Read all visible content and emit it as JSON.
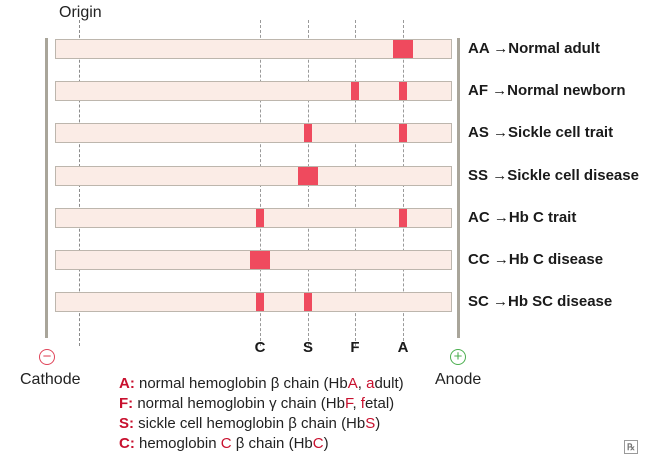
{
  "origin_label": "Origin",
  "lanes": [
    {
      "code": "AA",
      "arrow": "→",
      "label": "Normal adult",
      "bands": [
        "A"
      ],
      "wide": true
    },
    {
      "code": "AF",
      "arrow": "→",
      "label": "Normal newborn",
      "bands": [
        "F",
        "A"
      ],
      "wide": false
    },
    {
      "code": "AS",
      "arrow": "→",
      "label": "Sickle cell trait",
      "bands": [
        "S",
        "A"
      ],
      "wide": false
    },
    {
      "code": "SS",
      "arrow": "→",
      "label": "Sickle cell disease",
      "bands": [
        "S"
      ],
      "wide": true
    },
    {
      "code": "AC",
      "arrow": "→",
      "label": "Hb C trait",
      "bands": [
        "C",
        "A"
      ],
      "wide": false
    },
    {
      "code": "CC",
      "arrow": "→",
      "label": "Hb C disease",
      "bands": [
        "C"
      ],
      "wide": true
    },
    {
      "code": "SC",
      "arrow": "→",
      "label": "Hb SC disease",
      "bands": [
        "C",
        "S"
      ],
      "wide": false
    }
  ],
  "columns": [
    "C",
    "S",
    "F",
    "A"
  ],
  "cathode": {
    "symbol": "−",
    "label": "Cathode"
  },
  "anode": {
    "symbol": "+",
    "label": "Anode"
  },
  "legend": [
    {
      "key": "A:",
      "parts": [
        {
          "t": " normal hemoglobin β chain (Hb",
          "h": false
        },
        {
          "t": "A",
          "h": true
        },
        {
          "t": ", ",
          "h": false
        },
        {
          "t": "a",
          "h": true
        },
        {
          "t": "dult)",
          "h": false
        }
      ]
    },
    {
      "key": "F:",
      "parts": [
        {
          "t": " normal hemoglobin γ chain (Hb",
          "h": false
        },
        {
          "t": "F",
          "h": true
        },
        {
          "t": ", ",
          "h": false
        },
        {
          "t": "f",
          "h": true
        },
        {
          "t": "etal)",
          "h": false
        }
      ]
    },
    {
      "key": "S:",
      "parts": [
        {
          "t": " sickle cell hemoglobin β chain (Hb",
          "h": false
        },
        {
          "t": "S",
          "h": true
        },
        {
          "t": ")",
          "h": false
        }
      ]
    },
    {
      "key": "C:",
      "parts": [
        {
          "t": " hemoglobin ",
          "h": false
        },
        {
          "t": "C",
          "h": true
        },
        {
          "t": " β chain (Hb",
          "h": false
        },
        {
          "t": "C",
          "h": true
        },
        {
          "t": ")",
          "h": false
        }
      ]
    }
  ],
  "colors": {
    "band": "#ef4a5e",
    "lane_fill": "#fbece6",
    "anode": "#4caf50",
    "cathode": "#e0455a",
    "key": "#c8102e"
  }
}
